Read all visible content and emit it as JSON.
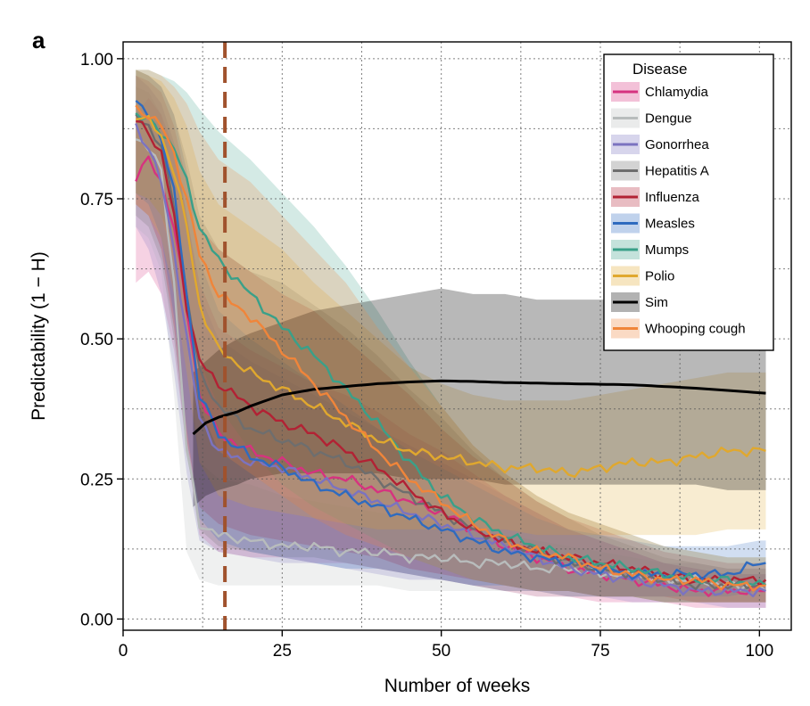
{
  "panel_label": "a",
  "chart_data": {
    "type": "line",
    "xlabel": "Number of weeks",
    "ylabel": "Predictability (1 − H)",
    "xlim": [
      0,
      105
    ],
    "ylim": [
      -0.02,
      1.03
    ],
    "xticks": [
      0,
      25,
      50,
      75,
      100
    ],
    "xtick_labels": [
      "0",
      "25",
      "50",
      "75",
      "100"
    ],
    "yticks": [
      0,
      0.25,
      0.5,
      0.75,
      1.0
    ],
    "ytick_labels": [
      "0.00",
      "0.25",
      "0.50",
      "0.75",
      "1.00"
    ],
    "grid": true,
    "vline": {
      "x": 16,
      "color": "#a0522d",
      "style": "dashed"
    },
    "legend": {
      "title": "Disease",
      "placement": "top-right"
    },
    "series": [
      {
        "name": "Chlamydia",
        "color": "#d6337f",
        "x": [
          2,
          4,
          6,
          8,
          10,
          12,
          15,
          20,
          25,
          30,
          35,
          40,
          45,
          50,
          55,
          60,
          65,
          70,
          75,
          80,
          85,
          90,
          95,
          100,
          101
        ],
        "y": [
          0.79,
          0.82,
          0.78,
          0.7,
          0.55,
          0.4,
          0.33,
          0.3,
          0.28,
          0.26,
          0.25,
          0.23,
          0.21,
          0.19,
          0.16,
          0.13,
          0.11,
          0.09,
          0.08,
          0.07,
          0.06,
          0.05,
          0.05,
          0.05,
          0.05
        ],
        "lower": [
          0.6,
          0.62,
          0.58,
          0.48,
          0.3,
          0.15,
          0.12,
          0.11,
          0.11,
          0.1,
          0.1,
          0.09,
          0.08,
          0.07,
          0.06,
          0.05,
          0.04,
          0.04,
          0.03,
          0.03,
          0.03,
          0.02,
          0.02,
          0.02,
          0.02
        ],
        "upper": [
          0.9,
          0.93,
          0.9,
          0.84,
          0.72,
          0.6,
          0.52,
          0.48,
          0.45,
          0.42,
          0.4,
          0.37,
          0.33,
          0.3,
          0.26,
          0.22,
          0.19,
          0.16,
          0.14,
          0.12,
          0.1,
          0.09,
          0.08,
          0.08,
          0.08
        ]
      },
      {
        "name": "Dengue",
        "color": "#b8bcbc",
        "x": [
          2,
          4,
          6,
          8,
          10,
          12,
          15,
          20,
          25,
          30,
          35,
          40,
          45,
          50,
          55,
          60,
          65,
          70,
          75,
          80,
          85,
          90,
          95,
          100,
          101
        ],
        "y": [
          0.86,
          0.84,
          0.8,
          0.6,
          0.3,
          0.17,
          0.15,
          0.14,
          0.13,
          0.13,
          0.12,
          0.12,
          0.11,
          0.11,
          0.1,
          0.1,
          0.09,
          0.09,
          0.08,
          0.08,
          0.07,
          0.07,
          0.06,
          0.06,
          0.05
        ],
        "lower": [
          0.7,
          0.68,
          0.62,
          0.4,
          0.12,
          0.07,
          0.06,
          0.06,
          0.06,
          0.06,
          0.06,
          0.06,
          0.05,
          0.05,
          0.05,
          0.05,
          0.04,
          0.04,
          0.04,
          0.04,
          0.03,
          0.03,
          0.03,
          0.03,
          0.03
        ],
        "upper": [
          0.95,
          0.94,
          0.9,
          0.78,
          0.5,
          0.28,
          0.25,
          0.24,
          0.22,
          0.21,
          0.2,
          0.19,
          0.18,
          0.17,
          0.16,
          0.15,
          0.14,
          0.13,
          0.12,
          0.11,
          0.1,
          0.1,
          0.09,
          0.09,
          0.09
        ]
      },
      {
        "name": "Gonorrhea",
        "color": "#7b73c0",
        "x": [
          2,
          4,
          6,
          8,
          10,
          12,
          15,
          20,
          25,
          30,
          35,
          40,
          45,
          50,
          55,
          60,
          65,
          70,
          75,
          80,
          85,
          90,
          95,
          100,
          101
        ],
        "y": [
          0.88,
          0.84,
          0.78,
          0.66,
          0.5,
          0.36,
          0.3,
          0.28,
          0.27,
          0.25,
          0.23,
          0.21,
          0.19,
          0.17,
          0.15,
          0.13,
          0.11,
          0.09,
          0.08,
          0.07,
          0.06,
          0.05,
          0.05,
          0.05,
          0.05
        ],
        "lower": [
          0.7,
          0.66,
          0.58,
          0.44,
          0.26,
          0.14,
          0.12,
          0.11,
          0.1,
          0.1,
          0.09,
          0.08,
          0.07,
          0.07,
          0.06,
          0.05,
          0.05,
          0.04,
          0.04,
          0.03,
          0.03,
          0.03,
          0.02,
          0.02,
          0.02
        ],
        "upper": [
          0.97,
          0.95,
          0.92,
          0.85,
          0.72,
          0.58,
          0.5,
          0.46,
          0.43,
          0.4,
          0.37,
          0.34,
          0.31,
          0.28,
          0.25,
          0.22,
          0.19,
          0.16,
          0.14,
          0.12,
          0.1,
          0.09,
          0.08,
          0.08,
          0.08
        ]
      },
      {
        "name": "Hepatitis A",
        "color": "#6e6e6e",
        "x": [
          2,
          4,
          6,
          8,
          10,
          12,
          15,
          20,
          25,
          30,
          35,
          40,
          45,
          50,
          55,
          60,
          65,
          70,
          75,
          80,
          85,
          90,
          95,
          100,
          101
        ],
        "y": [
          0.9,
          0.88,
          0.84,
          0.74,
          0.58,
          0.44,
          0.38,
          0.34,
          0.32,
          0.3,
          0.28,
          0.25,
          0.22,
          0.19,
          0.16,
          0.14,
          0.12,
          0.1,
          0.09,
          0.08,
          0.07,
          0.06,
          0.06,
          0.06,
          0.06
        ],
        "lower": [
          0.72,
          0.7,
          0.64,
          0.5,
          0.3,
          0.16,
          0.13,
          0.12,
          0.11,
          0.11,
          0.1,
          0.09,
          0.08,
          0.07,
          0.06,
          0.05,
          0.05,
          0.04,
          0.04,
          0.04,
          0.03,
          0.03,
          0.03,
          0.03,
          0.03
        ],
        "upper": [
          0.98,
          0.97,
          0.95,
          0.9,
          0.82,
          0.72,
          0.66,
          0.62,
          0.6,
          0.56,
          0.52,
          0.47,
          0.41,
          0.36,
          0.3,
          0.25,
          0.21,
          0.18,
          0.15,
          0.13,
          0.11,
          0.1,
          0.09,
          0.09,
          0.09
        ]
      },
      {
        "name": "Influenza",
        "color": "#b22234",
        "x": [
          2,
          4,
          6,
          8,
          10,
          12,
          15,
          20,
          25,
          30,
          35,
          40,
          45,
          50,
          55,
          60,
          65,
          70,
          75,
          80,
          85,
          90,
          95,
          100,
          101
        ],
        "y": [
          0.89,
          0.87,
          0.83,
          0.72,
          0.56,
          0.46,
          0.42,
          0.38,
          0.35,
          0.33,
          0.3,
          0.27,
          0.23,
          0.19,
          0.16,
          0.14,
          0.12,
          0.11,
          0.1,
          0.09,
          0.08,
          0.07,
          0.07,
          0.07,
          0.07
        ],
        "lower": [
          0.74,
          0.72,
          0.66,
          0.52,
          0.32,
          0.2,
          0.17,
          0.15,
          0.14,
          0.13,
          0.12,
          0.11,
          0.09,
          0.08,
          0.07,
          0.06,
          0.05,
          0.05,
          0.04,
          0.04,
          0.04,
          0.03,
          0.03,
          0.03,
          0.03
        ],
        "upper": [
          0.97,
          0.96,
          0.94,
          0.88,
          0.78,
          0.7,
          0.66,
          0.62,
          0.58,
          0.55,
          0.5,
          0.45,
          0.4,
          0.34,
          0.29,
          0.25,
          0.21,
          0.18,
          0.16,
          0.14,
          0.12,
          0.11,
          0.1,
          0.1,
          0.1
        ]
      },
      {
        "name": "Measles",
        "color": "#2f6bbf",
        "x": [
          2,
          4,
          6,
          8,
          10,
          12,
          15,
          20,
          25,
          30,
          35,
          40,
          45,
          50,
          55,
          60,
          65,
          70,
          75,
          80,
          85,
          90,
          95,
          100,
          101
        ],
        "y": [
          0.92,
          0.9,
          0.86,
          0.76,
          0.58,
          0.4,
          0.33,
          0.29,
          0.27,
          0.24,
          0.22,
          0.2,
          0.18,
          0.16,
          0.14,
          0.12,
          0.11,
          0.1,
          0.09,
          0.08,
          0.08,
          0.08,
          0.08,
          0.1,
          0.1
        ],
        "lower": [
          0.76,
          0.74,
          0.68,
          0.54,
          0.34,
          0.18,
          0.14,
          0.12,
          0.11,
          0.1,
          0.09,
          0.09,
          0.08,
          0.07,
          0.06,
          0.06,
          0.05,
          0.05,
          0.04,
          0.04,
          0.04,
          0.04,
          0.04,
          0.05,
          0.05
        ],
        "upper": [
          0.98,
          0.97,
          0.95,
          0.9,
          0.8,
          0.64,
          0.55,
          0.5,
          0.46,
          0.42,
          0.38,
          0.34,
          0.3,
          0.27,
          0.24,
          0.21,
          0.18,
          0.16,
          0.15,
          0.14,
          0.13,
          0.13,
          0.13,
          0.14,
          0.14
        ]
      },
      {
        "name": "Mumps",
        "color": "#3aa089",
        "x": [
          2,
          4,
          6,
          8,
          10,
          12,
          15,
          20,
          25,
          30,
          35,
          40,
          45,
          50,
          55,
          60,
          65,
          70,
          75,
          80,
          85,
          90,
          95,
          100,
          101
        ],
        "y": [
          0.9,
          0.89,
          0.87,
          0.84,
          0.78,
          0.7,
          0.64,
          0.58,
          0.52,
          0.47,
          0.41,
          0.35,
          0.28,
          0.22,
          0.18,
          0.15,
          0.13,
          0.11,
          0.1,
          0.09,
          0.08,
          0.07,
          0.07,
          0.06,
          0.06
        ],
        "lower": [
          0.76,
          0.75,
          0.72,
          0.67,
          0.58,
          0.46,
          0.38,
          0.3,
          0.24,
          0.2,
          0.17,
          0.14,
          0.11,
          0.09,
          0.07,
          0.06,
          0.05,
          0.05,
          0.04,
          0.04,
          0.03,
          0.03,
          0.03,
          0.03,
          0.03
        ],
        "upper": [
          0.98,
          0.98,
          0.97,
          0.96,
          0.94,
          0.91,
          0.87,
          0.82,
          0.76,
          0.7,
          0.63,
          0.55,
          0.46,
          0.38,
          0.31,
          0.26,
          0.22,
          0.19,
          0.17,
          0.15,
          0.13,
          0.12,
          0.11,
          0.11,
          0.11
        ]
      },
      {
        "name": "Polio",
        "color": "#e0a82e",
        "x": [
          2,
          4,
          6,
          8,
          10,
          12,
          15,
          20,
          25,
          30,
          35,
          40,
          45,
          50,
          55,
          60,
          65,
          70,
          75,
          80,
          85,
          90,
          95,
          100,
          101
        ],
        "y": [
          0.9,
          0.89,
          0.86,
          0.8,
          0.7,
          0.56,
          0.48,
          0.44,
          0.41,
          0.38,
          0.35,
          0.32,
          0.3,
          0.29,
          0.28,
          0.27,
          0.27,
          0.26,
          0.27,
          0.28,
          0.28,
          0.29,
          0.3,
          0.3,
          0.3
        ],
        "lower": [
          0.74,
          0.72,
          0.68,
          0.58,
          0.44,
          0.28,
          0.22,
          0.2,
          0.19,
          0.18,
          0.17,
          0.16,
          0.16,
          0.16,
          0.16,
          0.16,
          0.15,
          0.15,
          0.15,
          0.15,
          0.15,
          0.15,
          0.16,
          0.16,
          0.16
        ],
        "upper": [
          0.98,
          0.97,
          0.96,
          0.93,
          0.88,
          0.8,
          0.74,
          0.7,
          0.66,
          0.6,
          0.55,
          0.5,
          0.45,
          0.42,
          0.4,
          0.39,
          0.39,
          0.39,
          0.4,
          0.41,
          0.42,
          0.43,
          0.44,
          0.44,
          0.44
        ]
      },
      {
        "name": "Sim",
        "color": "#000000",
        "x": [
          11,
          13,
          15,
          18,
          20,
          25,
          30,
          35,
          40,
          45,
          50,
          55,
          60,
          65,
          70,
          75,
          80,
          85,
          90,
          95,
          101
        ],
        "y": [
          0.33,
          0.35,
          0.36,
          0.37,
          0.38,
          0.4,
          0.41,
          0.415,
          0.42,
          0.423,
          0.425,
          0.424,
          0.422,
          0.421,
          0.42,
          0.419,
          0.418,
          0.415,
          0.412,
          0.408,
          0.403
        ],
        "lower": [
          0.2,
          0.22,
          0.23,
          0.24,
          0.25,
          0.26,
          0.26,
          0.26,
          0.26,
          0.25,
          0.25,
          0.25,
          0.24,
          0.24,
          0.24,
          0.24,
          0.24,
          0.24,
          0.24,
          0.23,
          0.23
        ],
        "upper": [
          0.44,
          0.46,
          0.48,
          0.5,
          0.51,
          0.53,
          0.55,
          0.56,
          0.57,
          0.58,
          0.59,
          0.58,
          0.58,
          0.57,
          0.57,
          0.57,
          0.57,
          0.57,
          0.57,
          0.57,
          0.56
        ]
      },
      {
        "name": "Whooping cough",
        "color": "#f0853a",
        "x": [
          2,
          4,
          6,
          8,
          10,
          12,
          15,
          20,
          25,
          30,
          35,
          40,
          45,
          50,
          55,
          60,
          65,
          70,
          75,
          80,
          85,
          90,
          95,
          100,
          101
        ],
        "y": [
          0.91,
          0.9,
          0.88,
          0.83,
          0.75,
          0.65,
          0.58,
          0.54,
          0.48,
          0.42,
          0.36,
          0.3,
          0.25,
          0.21,
          0.17,
          0.14,
          0.12,
          0.11,
          0.09,
          0.08,
          0.07,
          0.07,
          0.06,
          0.06,
          0.06
        ],
        "lower": [
          0.76,
          0.75,
          0.72,
          0.64,
          0.52,
          0.38,
          0.3,
          0.26,
          0.22,
          0.18,
          0.15,
          0.13,
          0.11,
          0.09,
          0.07,
          0.06,
          0.05,
          0.05,
          0.04,
          0.04,
          0.03,
          0.03,
          0.03,
          0.03,
          0.03
        ],
        "upper": [
          0.98,
          0.98,
          0.97,
          0.95,
          0.92,
          0.87,
          0.82,
          0.78,
          0.72,
          0.66,
          0.6,
          0.52,
          0.45,
          0.38,
          0.31,
          0.26,
          0.22,
          0.19,
          0.17,
          0.15,
          0.13,
          0.12,
          0.11,
          0.11,
          0.11
        ]
      }
    ]
  }
}
